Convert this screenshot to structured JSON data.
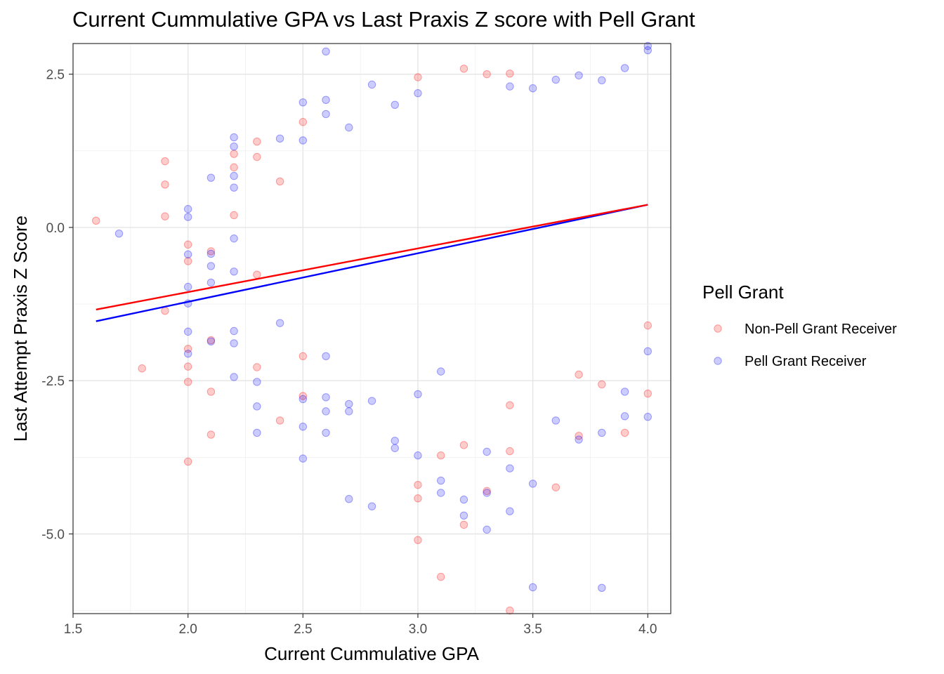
{
  "chart_data": {
    "type": "scatter",
    "title": "Current Cummulative GPA vs Last Praxis Z score with Pell Grant",
    "xlabel": "Current Cummulative GPA",
    "ylabel": "Last Attempt Praxis Z Score",
    "xlim": [
      1.5,
      4.1
    ],
    "ylim": [
      -6.3,
      3.0
    ],
    "x_ticks": [
      1.5,
      2.0,
      2.5,
      3.0,
      3.5,
      4.0
    ],
    "x_tick_labels": [
      "1.5",
      "2.0",
      "2.5",
      "3.0",
      "3.5",
      "4.0"
    ],
    "y_ticks": [
      2.5,
      0.0,
      -2.5,
      -5.0
    ],
    "y_tick_labels": [
      "2.5",
      "0.0",
      "-2.5",
      "-5.0"
    ],
    "grid": true,
    "legend": {
      "title": "Pell Grant",
      "position": "right"
    },
    "series": [
      {
        "name": "Non-Pell Grant Receiver",
        "color": "#ff0000",
        "fit": {
          "x": [
            1.6,
            4.0
          ],
          "y": [
            -1.34,
            0.37
          ]
        },
        "points": [
          [
            1.6,
            0.11
          ],
          [
            1.8,
            -2.3
          ],
          [
            1.9,
            1.08
          ],
          [
            1.9,
            0.7
          ],
          [
            1.9,
            0.18
          ],
          [
            1.9,
            -1.36
          ],
          [
            2.0,
            -0.28
          ],
          [
            2.0,
            -0.55
          ],
          [
            2.0,
            -1.98
          ],
          [
            2.0,
            -2.27
          ],
          [
            2.0,
            -2.52
          ],
          [
            2.0,
            -3.82
          ],
          [
            2.1,
            -0.39
          ],
          [
            2.1,
            -1.84
          ],
          [
            2.1,
            -2.68
          ],
          [
            2.1,
            -3.38
          ],
          [
            2.2,
            0.2
          ],
          [
            2.2,
            0.98
          ],
          [
            2.2,
            1.2
          ],
          [
            2.3,
            1.4
          ],
          [
            2.3,
            1.15
          ],
          [
            2.3,
            -2.28
          ],
          [
            2.3,
            -0.77
          ],
          [
            2.4,
            0.75
          ],
          [
            2.4,
            -3.15
          ],
          [
            2.5,
            1.72
          ],
          [
            2.5,
            -2.1
          ],
          [
            2.5,
            -2.75
          ],
          [
            3.0,
            2.45
          ],
          [
            3.0,
            -5.1
          ],
          [
            3.0,
            -4.2
          ],
          [
            3.0,
            -4.42
          ],
          [
            3.1,
            -5.7
          ],
          [
            3.1,
            -3.72
          ],
          [
            3.2,
            2.59
          ],
          [
            3.2,
            -4.85
          ],
          [
            3.2,
            -3.55
          ],
          [
            3.3,
            2.5
          ],
          [
            3.3,
            -4.3
          ],
          [
            3.4,
            2.51
          ],
          [
            3.4,
            -6.25
          ],
          [
            3.4,
            -3.65
          ],
          [
            3.4,
            -2.9
          ],
          [
            3.6,
            -4.24
          ],
          [
            3.7,
            -2.4
          ],
          [
            3.7,
            -3.4
          ],
          [
            3.8,
            -2.56
          ],
          [
            3.9,
            -3.35
          ],
          [
            4.0,
            -2.71
          ],
          [
            4.0,
            -1.6
          ]
        ]
      },
      {
        "name": "Pell Grant Receiver",
        "color": "#0000ff",
        "fit": {
          "x": [
            1.6,
            4.0
          ],
          "y": [
            -1.53,
            0.37
          ]
        },
        "points": [
          [
            1.7,
            -0.1
          ],
          [
            2.0,
            0.3
          ],
          [
            2.0,
            0.17
          ],
          [
            2.0,
            -0.44
          ],
          [
            2.0,
            -0.97
          ],
          [
            2.0,
            -1.24
          ],
          [
            2.0,
            -1.7
          ],
          [
            2.0,
            -2.06
          ],
          [
            2.1,
            0.81
          ],
          [
            2.1,
            -0.43
          ],
          [
            2.1,
            -0.63
          ],
          [
            2.1,
            -0.9
          ],
          [
            2.1,
            -1.86
          ],
          [
            2.2,
            1.47
          ],
          [
            2.2,
            1.32
          ],
          [
            2.2,
            0.84
          ],
          [
            2.2,
            0.65
          ],
          [
            2.2,
            -0.18
          ],
          [
            2.2,
            -0.72
          ],
          [
            2.2,
            -1.69
          ],
          [
            2.2,
            -1.89
          ],
          [
            2.2,
            -2.44
          ],
          [
            2.3,
            -2.92
          ],
          [
            2.3,
            -3.35
          ],
          [
            2.3,
            -2.52
          ],
          [
            2.4,
            -1.56
          ],
          [
            2.4,
            1.45
          ],
          [
            2.5,
            2.04
          ],
          [
            2.5,
            1.42
          ],
          [
            2.5,
            -3.77
          ],
          [
            2.5,
            -3.25
          ],
          [
            2.5,
            -2.8
          ],
          [
            2.6,
            2.87
          ],
          [
            2.6,
            2.08
          ],
          [
            2.6,
            1.85
          ],
          [
            2.6,
            -2.77
          ],
          [
            2.6,
            -3.0
          ],
          [
            2.6,
            -3.35
          ],
          [
            2.6,
            -2.1
          ],
          [
            2.7,
            1.63
          ],
          [
            2.7,
            -4.43
          ],
          [
            2.7,
            -2.88
          ],
          [
            2.7,
            -3.0
          ],
          [
            2.8,
            2.33
          ],
          [
            2.8,
            -4.55
          ],
          [
            2.8,
            -2.83
          ],
          [
            2.9,
            2.0
          ],
          [
            2.9,
            -3.48
          ],
          [
            2.9,
            -3.6
          ],
          [
            3.0,
            2.19
          ],
          [
            3.0,
            -3.72
          ],
          [
            3.0,
            -2.72
          ],
          [
            3.1,
            -4.13
          ],
          [
            3.1,
            -4.33
          ],
          [
            3.1,
            -2.35
          ],
          [
            3.2,
            -4.44
          ],
          [
            3.2,
            -4.7
          ],
          [
            3.3,
            -4.93
          ],
          [
            3.3,
            -3.66
          ],
          [
            3.3,
            -4.33
          ],
          [
            3.4,
            2.3
          ],
          [
            3.4,
            -4.63
          ],
          [
            3.4,
            -3.93
          ],
          [
            3.5,
            -5.87
          ],
          [
            3.5,
            -4.18
          ],
          [
            3.5,
            2.27
          ],
          [
            3.6,
            2.41
          ],
          [
            3.6,
            -3.15
          ],
          [
            3.7,
            2.48
          ],
          [
            3.7,
            -3.46
          ],
          [
            3.8,
            2.4
          ],
          [
            3.8,
            -5.88
          ],
          [
            3.8,
            -3.35
          ],
          [
            3.9,
            2.6
          ],
          [
            3.9,
            -3.08
          ],
          [
            3.9,
            -2.68
          ],
          [
            4.0,
            2.96
          ],
          [
            4.0,
            2.89
          ],
          [
            4.0,
            -2.02
          ],
          [
            4.0,
            -3.09
          ]
        ]
      }
    ]
  }
}
